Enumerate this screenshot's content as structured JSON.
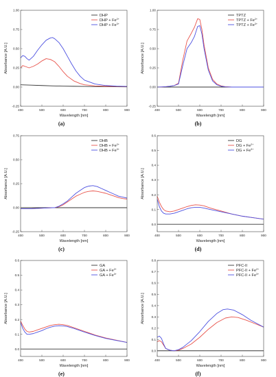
{
  "colors": {
    "black": "#333333",
    "red": "#e8524a",
    "blue": "#4b4fe0"
  },
  "chart_data": [
    {
      "type": "line",
      "panel_label": "(a)",
      "xlabel": "Wavelength [nm]",
      "ylabel": "Absorbance [A.U.]",
      "xlim": [
        400,
        900
      ],
      "ylim": [
        -0.25,
        1.0
      ],
      "xticks": [
        400,
        500,
        600,
        700,
        800,
        900
      ],
      "yticks": [
        -0.25,
        0.0,
        0.25,
        0.5,
        0.75,
        1.0
      ],
      "ytick_labels": [
        "-0.25",
        "0.00",
        "0.25",
        "0.50",
        "0.75",
        "1.00"
      ],
      "legend": "top-right",
      "grid": false,
      "series": [
        {
          "name": "DHP",
          "legend_main": "DHP",
          "legend_sup": "",
          "color": "black",
          "x": [
            400,
            450,
            500,
            550,
            600,
            650,
            700,
            750,
            800,
            850,
            900
          ],
          "y": [
            0.03,
            0.025,
            0.02,
            0.015,
            0.012,
            0.01,
            0.008,
            0.006,
            0.005,
            0.004,
            0.003
          ]
        },
        {
          "name": "DHP + Fe2+",
          "legend_main": "DHP + Fe",
          "legend_sup": "2+",
          "color": "red",
          "x": [
            400,
            410,
            420,
            440,
            460,
            480,
            500,
            520,
            540,
            560,
            580,
            600,
            620,
            650,
            680,
            700,
            750,
            800,
            850,
            900
          ],
          "y": [
            0.25,
            0.28,
            0.27,
            0.25,
            0.27,
            0.3,
            0.34,
            0.37,
            0.36,
            0.33,
            0.27,
            0.2,
            0.14,
            0.08,
            0.045,
            0.03,
            0.015,
            0.01,
            0.008,
            0.006
          ]
        },
        {
          "name": "DHP + Fe3+",
          "legend_main": "DHP + Fe",
          "legend_sup": "3+",
          "color": "blue",
          "x": [
            400,
            410,
            420,
            430,
            440,
            460,
            480,
            500,
            520,
            540,
            550,
            560,
            580,
            600,
            620,
            640,
            660,
            680,
            700,
            750,
            800,
            850,
            900
          ],
          "y": [
            0.38,
            0.41,
            0.4,
            0.37,
            0.35,
            0.4,
            0.48,
            0.55,
            0.61,
            0.64,
            0.645,
            0.63,
            0.58,
            0.5,
            0.4,
            0.3,
            0.21,
            0.14,
            0.09,
            0.04,
            0.02,
            0.012,
            0.008
          ]
        }
      ]
    },
    {
      "type": "line",
      "panel_label": "(b)",
      "xlabel": "Wavelength [nm]",
      "ylabel": "Absorbance [A.U.]",
      "xlim": [
        400,
        900
      ],
      "ylim": [
        -0.25,
        1.0
      ],
      "xticks": [
        400,
        500,
        600,
        700,
        800,
        900
      ],
      "yticks": [
        -0.25,
        0.0,
        0.25,
        0.5,
        0.75,
        1.0
      ],
      "ytick_labels": [
        "-0.25",
        "0.00",
        "0.25",
        "0.50",
        "0.75",
        "1.00"
      ],
      "legend": "top-right",
      "grid": false,
      "series": [
        {
          "name": "TPTZ",
          "legend_main": "TPTZ",
          "legend_sup": "",
          "color": "black",
          "x": [
            400,
            500,
            600,
            700,
            800,
            900
          ],
          "y": [
            0.0,
            0.0,
            0.0,
            0.0,
            0.0,
            0.0
          ]
        },
        {
          "name": "TPTZ + Fe2+",
          "legend_main": "TPTZ + Fe",
          "legend_sup": "2+",
          "color": "red",
          "x": [
            400,
            420,
            440,
            460,
            480,
            500,
            520,
            540,
            560,
            575,
            590,
            600,
            610,
            620,
            640,
            660,
            680,
            700,
            720,
            750,
            800,
            850,
            900
          ],
          "y": [
            0.0,
            0.002,
            0.005,
            0.01,
            0.02,
            0.05,
            0.35,
            0.6,
            0.7,
            0.78,
            0.89,
            0.88,
            0.75,
            0.55,
            0.25,
            0.1,
            0.04,
            0.015,
            0.005,
            0.0,
            0.0,
            0.0,
            0.0
          ]
        },
        {
          "name": "TPTZ + Fe3+",
          "legend_main": "TPTZ + Fe",
          "legend_sup": "3+",
          "color": "blue",
          "x": [
            400,
            420,
            440,
            460,
            480,
            500,
            520,
            540,
            560,
            575,
            590,
            600,
            610,
            620,
            640,
            660,
            680,
            700,
            720,
            750,
            800,
            850,
            900
          ],
          "y": [
            0.0,
            0.002,
            0.005,
            0.01,
            0.02,
            0.04,
            0.28,
            0.5,
            0.58,
            0.66,
            0.79,
            0.8,
            0.69,
            0.5,
            0.22,
            0.08,
            0.03,
            0.01,
            0.003,
            0.0,
            0.0,
            0.0,
            0.0
          ]
        }
      ]
    },
    {
      "type": "line",
      "panel_label": "(c)",
      "xlabel": "Wavelength [nm]",
      "ylabel": "Absorbance [A.U.]",
      "xlim": [
        400,
        900
      ],
      "ylim": [
        -0.25,
        0.75
      ],
      "xticks": [
        400,
        500,
        600,
        700,
        800,
        900
      ],
      "yticks": [
        -0.25,
        0.0,
        0.25,
        0.5,
        0.75
      ],
      "ytick_labels": [
        "-0.25",
        "0.00",
        "0.25",
        "0.50",
        "0.75"
      ],
      "legend": "top-right",
      "grid": false,
      "series": [
        {
          "name": "DHB",
          "legend_main": "DHB",
          "legend_sup": "",
          "color": "black",
          "x": [
            400,
            500,
            600,
            700,
            800,
            900
          ],
          "y": [
            0.0,
            0.0,
            0.0,
            0.0,
            0.0,
            0.0
          ]
        },
        {
          "name": "DHB + Fe2+",
          "legend_main": "DHB + Fe",
          "legend_sup": "2+",
          "color": "red",
          "x": [
            400,
            450,
            500,
            550,
            560,
            580,
            600,
            620,
            640,
            660,
            680,
            700,
            720,
            740,
            760,
            780,
            800,
            820,
            840,
            860,
            880,
            900
          ],
          "y": [
            -0.01,
            -0.01,
            -0.005,
            0.0,
            0.0,
            0.01,
            0.03,
            0.06,
            0.09,
            0.12,
            0.14,
            0.16,
            0.17,
            0.175,
            0.17,
            0.16,
            0.15,
            0.135,
            0.12,
            0.105,
            0.095,
            0.09
          ]
        },
        {
          "name": "DHB + Fe3+",
          "legend_main": "DHB + Fe",
          "legend_sup": "3+",
          "color": "blue",
          "x": [
            400,
            450,
            500,
            550,
            560,
            580,
            600,
            620,
            640,
            660,
            680,
            700,
            720,
            740,
            760,
            780,
            800,
            820,
            840,
            860,
            880,
            900
          ],
          "y": [
            -0.01,
            -0.01,
            -0.005,
            0.0,
            0.0,
            0.015,
            0.04,
            0.07,
            0.11,
            0.15,
            0.18,
            0.21,
            0.225,
            0.23,
            0.22,
            0.2,
            0.18,
            0.16,
            0.14,
            0.12,
            0.11,
            0.1
          ]
        }
      ]
    },
    {
      "type": "line",
      "panel_label": "(d)",
      "xlabel": "Wavelength [nm]",
      "ylabel": "Absorbance [A.U.]",
      "xlim": [
        400,
        900
      ],
      "ylim": [
        -0.05,
        0.6
      ],
      "xticks": [
        400,
        500,
        600,
        700,
        800,
        900
      ],
      "yticks": [
        0.0,
        0.1,
        0.2,
        0.3,
        0.4,
        0.5,
        0.6
      ],
      "ytick_labels": [
        "0.0",
        "0.1",
        "0.2",
        "0.3",
        "0.4",
        "0.5",
        "0.6"
      ],
      "legend": "top-right",
      "grid": false,
      "series": [
        {
          "name": "DG",
          "legend_main": "DG",
          "legend_sup": "",
          "color": "black",
          "x": [
            400,
            500,
            600,
            700,
            800,
            900
          ],
          "y": [
            0.0,
            0.0,
            0.0,
            0.0,
            0.0,
            0.0
          ]
        },
        {
          "name": "DG + Fe2+",
          "legend_main": "DG + Fe",
          "legend_sup": "2+",
          "color": "red",
          "x": [
            400,
            410,
            420,
            430,
            440,
            460,
            480,
            500,
            520,
            540,
            560,
            580,
            600,
            620,
            650,
            700,
            750,
            800,
            850,
            900
          ],
          "y": [
            0.19,
            0.15,
            0.12,
            0.1,
            0.09,
            0.085,
            0.09,
            0.1,
            0.11,
            0.12,
            0.128,
            0.132,
            0.13,
            0.125,
            0.11,
            0.09,
            0.07,
            0.055,
            0.045,
            0.035
          ]
        },
        {
          "name": "DG + Fe3+",
          "legend_main": "DG + Fe",
          "legend_sup": "3+",
          "color": "blue",
          "x": [
            400,
            410,
            420,
            430,
            440,
            460,
            480,
            500,
            520,
            540,
            560,
            580,
            600,
            620,
            650,
            700,
            750,
            800,
            850,
            900
          ],
          "y": [
            0.17,
            0.12,
            0.09,
            0.075,
            0.07,
            0.07,
            0.075,
            0.085,
            0.095,
            0.105,
            0.112,
            0.115,
            0.115,
            0.11,
            0.1,
            0.085,
            0.07,
            0.055,
            0.045,
            0.035
          ]
        }
      ]
    },
    {
      "type": "line",
      "panel_label": "(e)",
      "xlabel": "Wavelength [nm]",
      "ylabel": "Absorbance [A.U.]",
      "xlim": [
        400,
        900
      ],
      "ylim": [
        -0.05,
        0.6
      ],
      "xticks": [
        400,
        500,
        600,
        700,
        800,
        900
      ],
      "yticks": [
        0.0,
        0.1,
        0.2,
        0.3,
        0.4,
        0.5,
        0.6
      ],
      "ytick_labels": [
        "0.0",
        "0.1",
        "0.2",
        "0.3",
        "0.4",
        "0.5",
        "0.6"
      ],
      "legend": "top-right",
      "grid": false,
      "series": [
        {
          "name": "GA",
          "legend_main": "GA",
          "legend_sup": "",
          "color": "black",
          "x": [
            400,
            500,
            600,
            700,
            800,
            900
          ],
          "y": [
            0.0,
            0.0,
            0.0,
            0.0,
            0.0,
            0.0
          ]
        },
        {
          "name": "GA + Fe2+",
          "legend_main": "GA + Fe",
          "legend_sup": "2+",
          "color": "red",
          "x": [
            400,
            410,
            420,
            430,
            440,
            460,
            480,
            500,
            520,
            540,
            560,
            580,
            600,
            620,
            650,
            700,
            750,
            800,
            850,
            900
          ],
          "y": [
            0.19,
            0.16,
            0.135,
            0.12,
            0.115,
            0.12,
            0.13,
            0.14,
            0.15,
            0.16,
            0.165,
            0.168,
            0.165,
            0.16,
            0.145,
            0.12,
            0.095,
            0.075,
            0.06,
            0.045
          ]
        },
        {
          "name": "GA + Fe3+",
          "legend_main": "GA + Fe",
          "legend_sup": "3+",
          "color": "blue",
          "x": [
            400,
            410,
            420,
            430,
            440,
            460,
            480,
            500,
            520,
            540,
            560,
            580,
            600,
            620,
            650,
            700,
            750,
            800,
            850,
            900
          ],
          "y": [
            0.18,
            0.14,
            0.115,
            0.1,
            0.1,
            0.105,
            0.115,
            0.125,
            0.138,
            0.148,
            0.155,
            0.158,
            0.157,
            0.152,
            0.14,
            0.115,
            0.092,
            0.072,
            0.058,
            0.045
          ]
        }
      ]
    },
    {
      "type": "line",
      "panel_label": "(f)",
      "xlabel": "Wavelength [nm]",
      "ylabel": "Absorbance [A.U.]",
      "xlim": [
        400,
        900
      ],
      "ylim": [
        -0.05,
        0.8
      ],
      "xticks": [
        400,
        500,
        600,
        700,
        800,
        900
      ],
      "yticks": [
        0.0,
        0.1,
        0.2,
        0.3,
        0.4,
        0.5,
        0.6,
        0.7,
        0.8
      ],
      "ytick_labels": [
        "0.0",
        "0.1",
        "0.2",
        "0.3",
        "0.4",
        "0.5",
        "0.6",
        "0.7",
        "0.8"
      ],
      "legend": "top-right",
      "grid": false,
      "series": [
        {
          "name": "PFC-II",
          "legend_main": "PFC-II",
          "legend_sup": "",
          "color": "black",
          "x": [
            400,
            500,
            600,
            700,
            800,
            900
          ],
          "y": [
            0.0,
            0.0,
            0.0,
            0.0,
            0.0,
            0.0
          ]
        },
        {
          "name": "PFC-II + Fe2+",
          "legend_main": "PFC-II + Fe",
          "legend_sup": "2+",
          "color": "red",
          "x": [
            400,
            410,
            420,
            430,
            440,
            460,
            480,
            500,
            520,
            560,
            600,
            640,
            680,
            720,
            750,
            780,
            820,
            860,
            900
          ],
          "y": [
            0.08,
            0.09,
            0.08,
            0.05,
            0.02,
            0.005,
            0.0,
            0.005,
            0.02,
            0.06,
            0.12,
            0.19,
            0.25,
            0.29,
            0.3,
            0.295,
            0.27,
            0.24,
            0.21
          ]
        },
        {
          "name": "PFC-II + Fe3+",
          "legend_main": "PFC-II + Fe",
          "legend_sup": "3+",
          "color": "blue",
          "x": [
            400,
            410,
            420,
            430,
            440,
            460,
            480,
            500,
            520,
            560,
            600,
            640,
            680,
            710,
            730,
            760,
            800,
            840,
            880,
            900
          ],
          "y": [
            0.12,
            0.13,
            0.11,
            0.06,
            0.02,
            0.005,
            0.0,
            0.01,
            0.03,
            0.09,
            0.17,
            0.26,
            0.33,
            0.365,
            0.37,
            0.36,
            0.32,
            0.27,
            0.23,
            0.21
          ]
        }
      ]
    }
  ]
}
